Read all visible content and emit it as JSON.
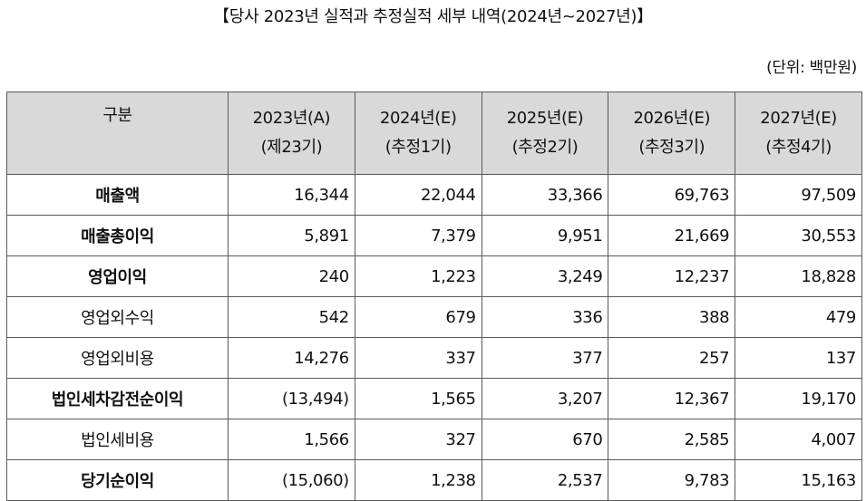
{
  "title": "【당사 2023년 실적과 추정실적 세부 내역(2024년~2027년)】",
  "unit": "(단위: 백만원)",
  "table": {
    "header": {
      "label": "구분",
      "columns": [
        {
          "year": "2023년(A)",
          "period": "(제23기)"
        },
        {
          "year": "2024년(E)",
          "period": "(추정1기)"
        },
        {
          "year": "2025년(E)",
          "period": "(추정2기)"
        },
        {
          "year": "2026년(E)",
          "period": "(추정3기)"
        },
        {
          "year": "2027년(E)",
          "period": "(추정4기)"
        }
      ]
    },
    "rows": [
      {
        "label": "매출액",
        "bold": true,
        "values": [
          "16,344",
          "22,044",
          "33,366",
          "69,763",
          "97,509"
        ]
      },
      {
        "label": "매출총이익",
        "bold": true,
        "values": [
          "5,891",
          "7,379",
          "9,951",
          "21,669",
          "30,553"
        ]
      },
      {
        "label": "영업이익",
        "bold": true,
        "values": [
          "240",
          "1,223",
          "3,249",
          "12,237",
          "18,828"
        ]
      },
      {
        "label": "영업외수익",
        "bold": false,
        "values": [
          "542",
          "679",
          "336",
          "388",
          "479"
        ]
      },
      {
        "label": "영업외비용",
        "bold": false,
        "values": [
          "14,276",
          "337",
          "377",
          "257",
          "137"
        ]
      },
      {
        "label": "법인세차감전순이익",
        "bold": true,
        "values": [
          "(13,494)",
          "1,565",
          "3,207",
          "12,367",
          "19,170"
        ]
      },
      {
        "label": "법인세비용",
        "bold": false,
        "values": [
          "1,566",
          "327",
          "670",
          "2,585",
          "4,007"
        ]
      },
      {
        "label": "당기순이익",
        "bold": true,
        "values": [
          "(15,060)",
          "1,238",
          "2,537",
          "9,783",
          "15,163"
        ]
      }
    ]
  }
}
